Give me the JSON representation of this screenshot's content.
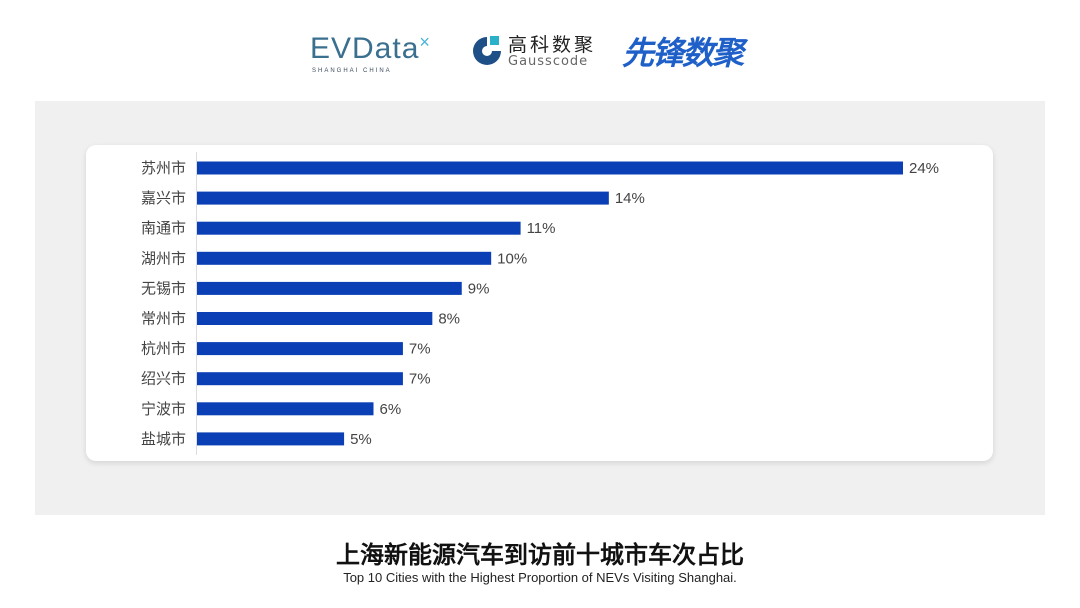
{
  "logos": {
    "evdata": "EVData",
    "evdata_sub": "SHANGHAI CHINA",
    "gauss_cn": "高科数聚",
    "gauss_en": "Gausscode",
    "xianfeng": "先锋数聚"
  },
  "title": "上海新能源汽车到访前十城市车次占比",
  "subtitle": "Top 10 Cities with the Highest Proportion of  NEVs Visiting Shanghai.",
  "chart_data": {
    "type": "bar",
    "orientation": "horizontal",
    "categories": [
      "苏州市",
      "嘉兴市",
      "南通市",
      "湖州市",
      "无锡市",
      "常州市",
      "杭州市",
      "绍兴市",
      "宁波市",
      "盐城市"
    ],
    "values": [
      24,
      14,
      11,
      10,
      9,
      8,
      7,
      7,
      6,
      5
    ],
    "value_labels": [
      "24%",
      "14%",
      "11%",
      "10%",
      "9%",
      "8%",
      "7%",
      "7%",
      "6%",
      "5%"
    ],
    "unit": "%",
    "bar_color": "#0a3fb5",
    "grid": false,
    "legend": "none"
  }
}
